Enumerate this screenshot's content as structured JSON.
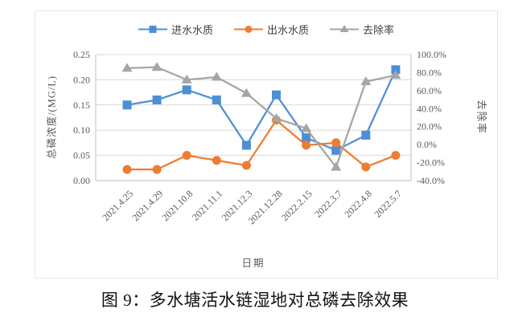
{
  "figure_caption": "图 9：多水塘活水链湿地对总磷去除效果",
  "chart_data": {
    "type": "line",
    "xlabel": "日期",
    "ylabel_left": "总磷浓度/(MG/L)",
    "ylabel_right": "去除率",
    "grid": "horizontal",
    "legend_position": "top",
    "categories": [
      "2021.4.25",
      "2021.4.29",
      "2021.10.8",
      "2021.11.1",
      "2021.12.3",
      "2021.12.28",
      "2022.2.15",
      "2022.3.7",
      "2022.4.8",
      "2022.5.7"
    ],
    "series": [
      {
        "id": "influent",
        "name": "进水水质",
        "axis": "left",
        "marker": "square",
        "color": "#4D8FD6",
        "values": [
          0.15,
          0.16,
          0.18,
          0.16,
          0.07,
          0.17,
          0.085,
          0.06,
          0.09,
          0.22
        ]
      },
      {
        "id": "effluent",
        "name": "出水水质",
        "axis": "left",
        "marker": "circle",
        "color": "#ED7D31",
        "values": [
          0.022,
          0.022,
          0.05,
          0.04,
          0.03,
          0.12,
          0.07,
          0.075,
          0.027,
          0.05
        ]
      },
      {
        "id": "removal-rate",
        "name": "去除率",
        "axis": "right",
        "marker": "triangle",
        "color": "#A5A5A5",
        "values": [
          85,
          86,
          72,
          75,
          57,
          29,
          18,
          -25,
          70,
          77
        ]
      }
    ],
    "left_axis": {
      "min": 0,
      "max": 0.25,
      "tick_values": [
        0,
        0.05,
        0.1,
        0.15,
        0.2,
        0.25
      ],
      "tick_labels": [
        "0.00",
        "0.05",
        "0.10",
        "0.15",
        "0.20",
        "0.25"
      ]
    },
    "right_axis": {
      "min": -40,
      "max": 100,
      "tick_values": [
        -40,
        -20,
        0,
        20,
        40,
        60,
        80,
        100
      ],
      "tick_labels": [
        "-40.0%",
        "-20.0%",
        "0.0%",
        "20.0%",
        "40.0%",
        "60.0%",
        "80.0%",
        "100.0%"
      ]
    }
  }
}
